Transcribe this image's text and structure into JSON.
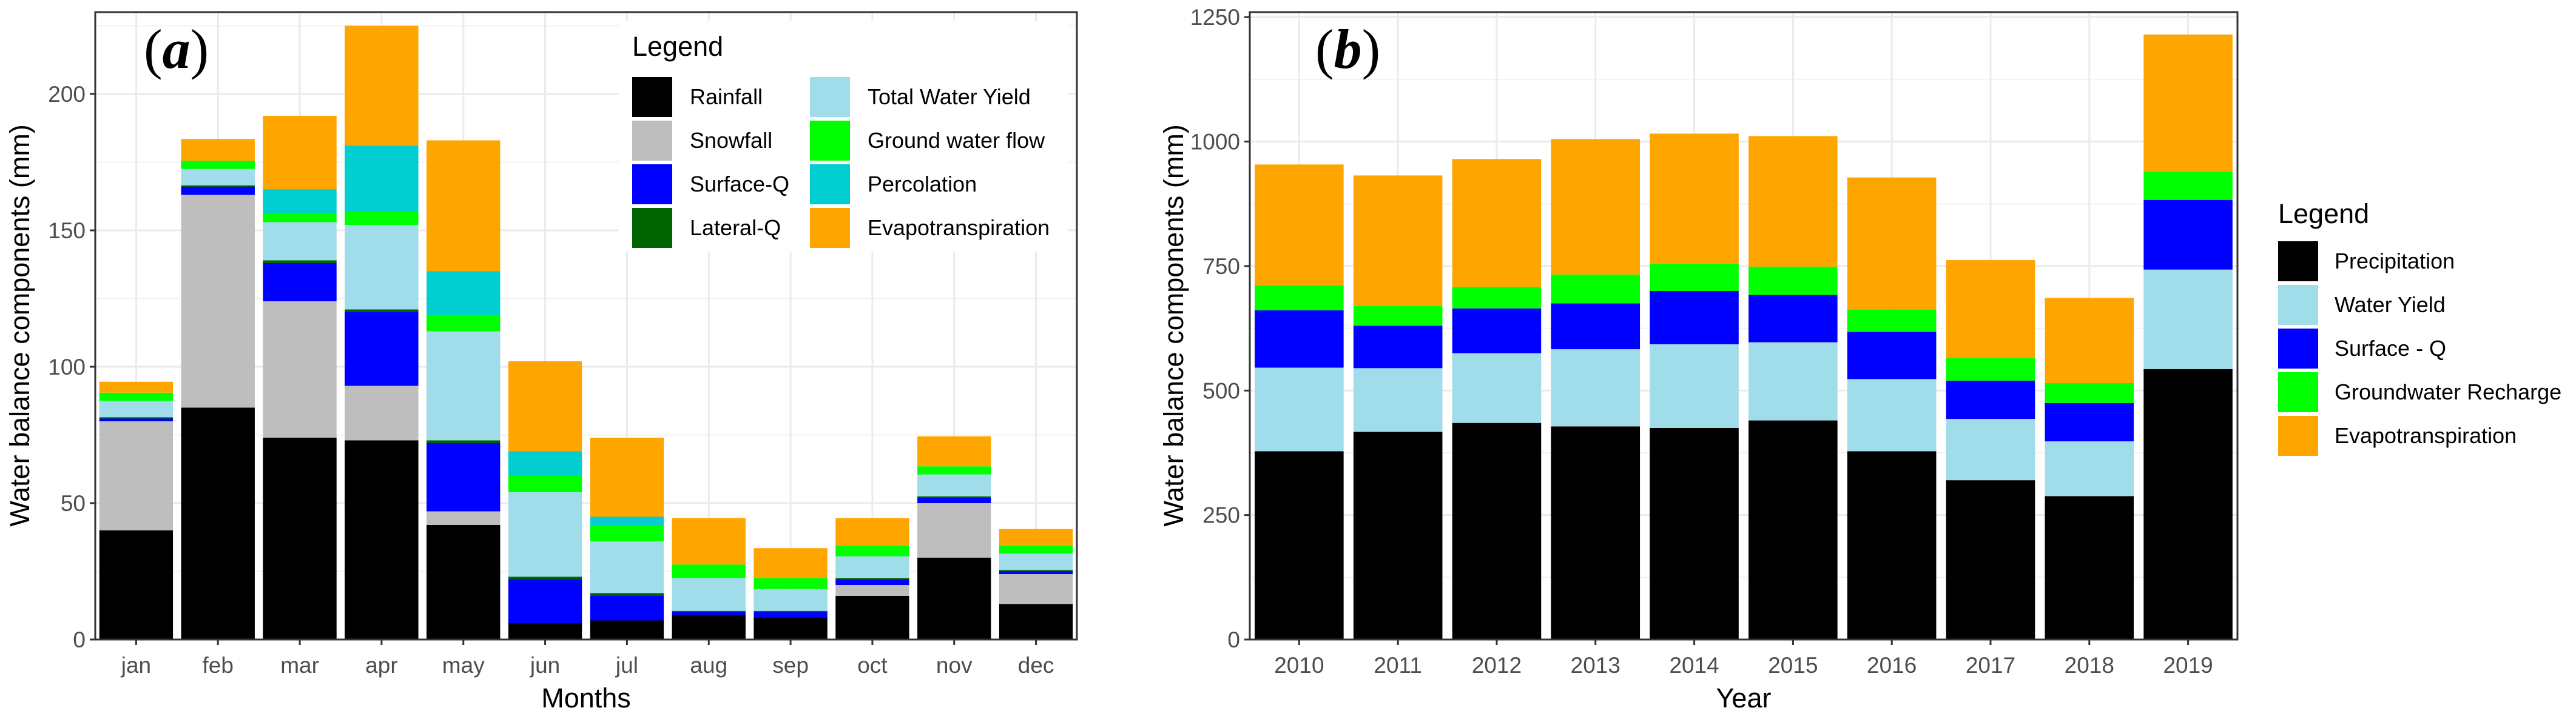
{
  "chart_data": [
    {
      "type": "bar",
      "stacked": true,
      "panel_label": "(a)",
      "tag_open": "(",
      "tag_letter": "a",
      "tag_close": ")",
      "xlabel": "Months",
      "ylabel": "Water balance components (mm)",
      "ylim": [
        0,
        230
      ],
      "yticks": [
        0,
        50,
        100,
        150,
        200
      ],
      "categories": [
        "jan",
        "feb",
        "mar",
        "apr",
        "may",
        "jun",
        "jul",
        "aug",
        "sep",
        "oct",
        "nov",
        "dec"
      ],
      "legend_title": "Legend",
      "legend_position": "top-right-inside",
      "series": [
        {
          "name": "Rainfall",
          "color": "#000000",
          "values": [
            40,
            85,
            74,
            73,
            42,
            6,
            7,
            9,
            8,
            16,
            30,
            13
          ]
        },
        {
          "name": "Snowfall",
          "color": "#bebebe",
          "values": [
            40,
            78,
            50,
            20,
            5,
            0,
            0,
            0,
            0,
            4,
            20,
            11
          ]
        },
        {
          "name": "Surface-Q",
          "color": "#0000ff",
          "values": [
            1,
            3,
            14,
            27,
            25,
            16,
            9,
            1,
            2,
            2,
            2,
            1
          ]
        },
        {
          "name": "Lateral-Q",
          "color": "#006400",
          "values": [
            0.5,
            0.5,
            1,
            1,
            1,
            1,
            1,
            0.5,
            0.5,
            0.5,
            0.5,
            0.5
          ]
        },
        {
          "name": "Total Water Yield",
          "color": "#a0dcea",
          "values": [
            6,
            6,
            14,
            31,
            40,
            31,
            19,
            12,
            8,
            8,
            8,
            6
          ]
        },
        {
          "name": "Ground water flow",
          "color": "#00ff00",
          "values": [
            3,
            3,
            3,
            5,
            6,
            6,
            6,
            5,
            4,
            4,
            3,
            3
          ]
        },
        {
          "name": "Percolation",
          "color": "#00ced1",
          "values": [
            0,
            0,
            9,
            24,
            16,
            9,
            3,
            0,
            0,
            0,
            0,
            0
          ]
        },
        {
          "name": "Evapotranspiration",
          "color": "#ffa500",
          "values": [
            4,
            8,
            27,
            44,
            48,
            33,
            29,
            17,
            11,
            10,
            11,
            6
          ]
        }
      ]
    },
    {
      "type": "bar",
      "stacked": true,
      "panel_label": "(b)",
      "tag_open": "(",
      "tag_letter": "b",
      "tag_close": ")",
      "xlabel": "Year",
      "ylabel": "Water balance components (mm)",
      "ylim": [
        0,
        1260
      ],
      "yticks": [
        0,
        250,
        500,
        750,
        1000,
        1250
      ],
      "categories": [
        "2010",
        "2011",
        "2012",
        "2013",
        "2014",
        "2015",
        "2016",
        "2017",
        "2018",
        "2019"
      ],
      "legend_title": "Legend",
      "legend_position": "right-outside",
      "series": [
        {
          "name": "Precipitation",
          "color": "#000000",
          "values": [
            378,
            417,
            435,
            428,
            425,
            440,
            378,
            320,
            288,
            543
          ]
        },
        {
          "name": "Water Yield",
          "color": "#a0dcea",
          "values": [
            168,
            128,
            140,
            155,
            168,
            157,
            145,
            123,
            110,
            200
          ]
        },
        {
          "name": "Surface - Q",
          "color": "#0000ff",
          "values": [
            115,
            85,
            90,
            92,
            107,
            95,
            95,
            77,
            77,
            140
          ]
        },
        {
          "name": "Groundwater Recharge",
          "color": "#00ff00",
          "values": [
            50,
            40,
            43,
            58,
            55,
            57,
            45,
            45,
            40,
            57
          ]
        },
        {
          "name": "Evapotranspiration",
          "color": "#ffa500",
          "values": [
            243,
            262,
            257,
            272,
            261,
            262,
            265,
            197,
            171,
            275
          ]
        }
      ]
    }
  ]
}
